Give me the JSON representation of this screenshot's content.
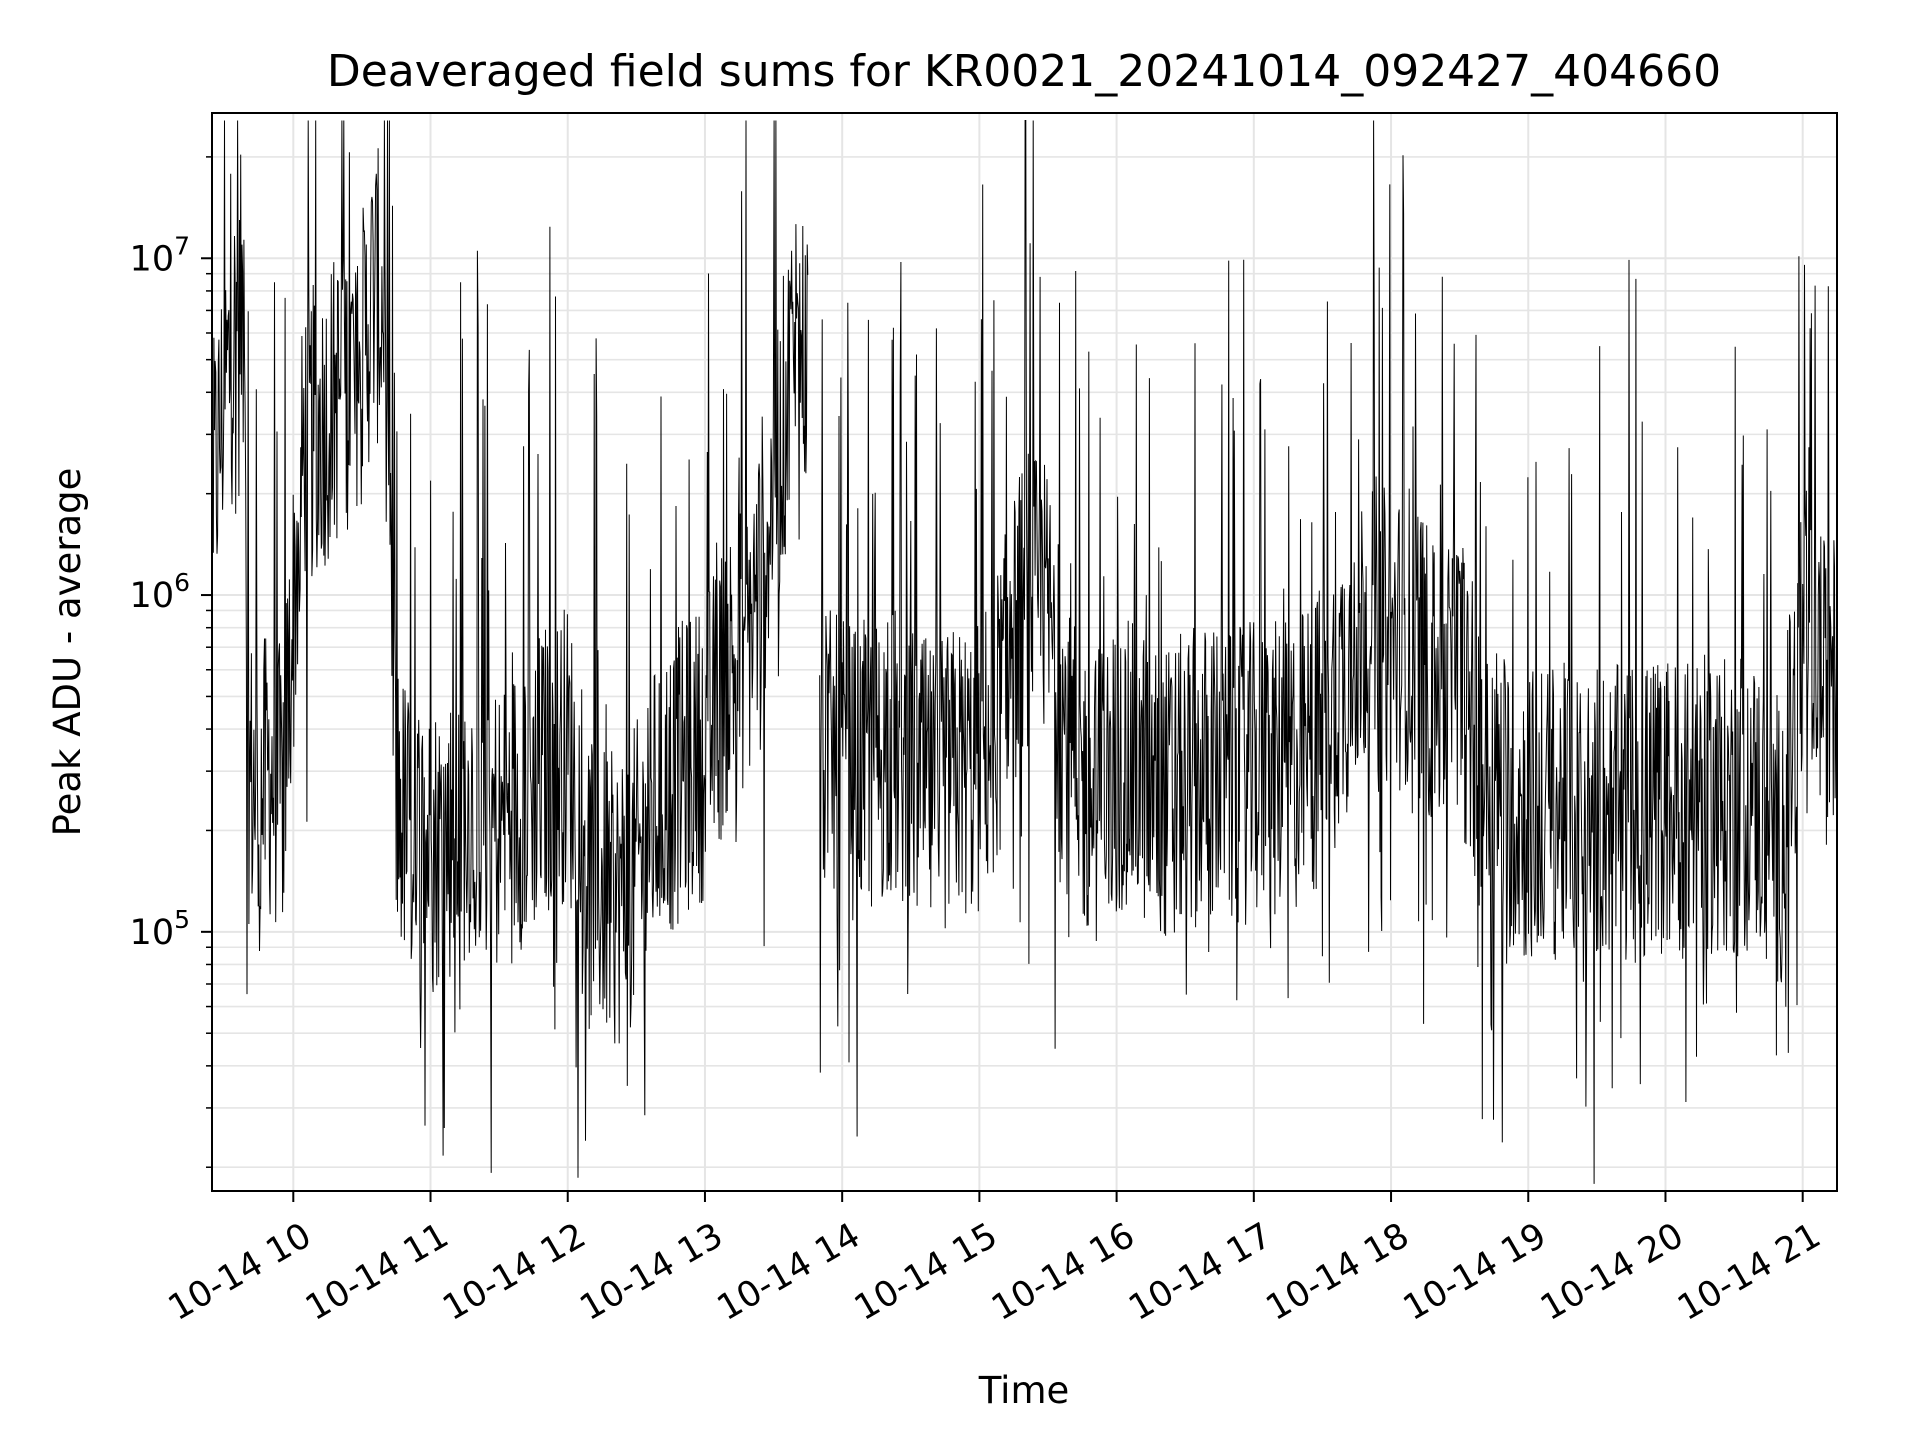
{
  "chart_data": {
    "type": "line",
    "title": "Deaveraged field sums for KR0021_20241014_092427_404660",
    "xlabel": "Time",
    "ylabel": "Peak ADU - average",
    "yscale": "log",
    "ylim": [
      17000,
      27000000
    ],
    "xlim": [
      "2024-10-14 09:24:27",
      "2024-10-14 21:15:00"
    ],
    "x_ticks": [
      "2024-10-14 10:00",
      "2024-10-14 11:00",
      "2024-10-14 12:00",
      "2024-10-14 13:00",
      "2024-10-14 14:00",
      "2024-10-14 15:00",
      "2024-10-14 16:00",
      "2024-10-14 17:00",
      "2024-10-14 18:00",
      "2024-10-14 19:00",
      "2024-10-14 20:00",
      "2024-10-14 21:00"
    ],
    "x_tick_labels": [
      "10-14 10",
      "10-14 11",
      "10-14 12",
      "10-14 13",
      "10-14 14",
      "10-14 15",
      "10-14 16",
      "10-14 17",
      "10-14 18",
      "10-14 19",
      "10-14 20",
      "10-14 21"
    ],
    "y_tick_labels": [
      {
        "base": "10",
        "exp": "5",
        "value": 100000
      },
      {
        "base": "10",
        "exp": "6",
        "value": 1000000
      },
      {
        "base": "10",
        "exp": "7",
        "value": 10000000
      }
    ],
    "grid": true,
    "line_color": "#000000",
    "grid_color": "#e5e5e5",
    "series": [
      {
        "x": [
          "2024-10-14 09:25",
          "2024-10-14 09:30",
          "2024-10-14 09:35",
          "2024-10-14 09:38",
          "2024-10-14 09:40",
          "2024-10-14 09:45",
          "2024-10-14 09:50",
          "2024-10-14 09:55",
          "2024-10-14 10:05",
          "2024-10-14 10:10",
          "2024-10-14 10:20",
          "2024-10-14 10:30",
          "2024-10-14 10:35",
          "2024-10-14 10:40",
          "2024-10-14 10:45",
          "2024-10-14 10:50",
          "2024-10-14 11:00",
          "2024-10-14 11:10",
          "2024-10-14 11:20",
          "2024-10-14 11:30",
          "2024-10-14 11:40",
          "2024-10-14 11:50",
          "2024-10-14 12:00",
          "2024-10-14 12:10",
          "2024-10-14 12:20",
          "2024-10-14 12:30",
          "2024-10-14 12:40",
          "2024-10-14 12:50",
          "2024-10-14 13:00",
          "2024-10-14 13:10",
          "2024-10-14 13:20",
          "2024-10-14 13:30",
          "2024-10-14 13:40",
          "2024-10-14 13:45",
          "2024-10-14 13:50",
          "2024-10-14 14:00",
          "2024-10-14 14:10",
          "2024-10-14 14:20",
          "2024-10-14 14:30",
          "2024-10-14 14:40",
          "2024-10-14 14:50",
          "2024-10-14 15:00",
          "2024-10-14 15:10",
          "2024-10-14 15:20",
          "2024-10-14 15:30",
          "2024-10-14 15:40",
          "2024-10-14 15:50",
          "2024-10-14 16:00",
          "2024-10-14 16:10",
          "2024-10-14 16:20",
          "2024-10-14 16:30",
          "2024-10-14 16:40",
          "2024-10-14 16:50",
          "2024-10-14 17:00",
          "2024-10-14 17:10",
          "2024-10-14 17:20",
          "2024-10-14 17:30",
          "2024-10-14 17:40",
          "2024-10-14 17:50",
          "2024-10-14 18:00",
          "2024-10-14 18:10",
          "2024-10-14 18:20",
          "2024-10-14 18:30",
          "2024-10-14 18:40",
          "2024-10-14 18:50",
          "2024-10-14 19:00",
          "2024-10-14 19:10",
          "2024-10-14 19:20",
          "2024-10-14 19:30",
          "2024-10-14 19:40",
          "2024-10-14 19:50",
          "2024-10-14 20:00",
          "2024-10-14 20:10",
          "2024-10-14 20:20",
          "2024-10-14 20:30",
          "2024-10-14 20:40",
          "2024-10-14 20:50",
          "2024-10-14 21:00",
          "2024-10-14 21:05",
          "2024-10-14 21:10",
          "2024-10-14 21:15"
        ],
        "y": [
          2000000,
          4000000,
          6000000,
          8000000,
          300000,
          250000,
          300000,
          250000,
          3000000,
          3000000,
          4000000,
          5000000,
          8000000,
          7000000,
          250000,
          200000,
          180000,
          200000,
          250000,
          200000,
          250000,
          300000,
          350000,
          150000,
          120000,
          150000,
          250000,
          300000,
          350000,
          600000,
          800000,
          2000000,
          6000000,
          5000000,
          350000,
          300000,
          300000,
          350000,
          300000,
          250000,
          300000,
          300000,
          500000,
          1000000,
          900000,
          300000,
          250000,
          300000,
          300000,
          250000,
          280000,
          300000,
          280000,
          300000,
          300000,
          320000,
          400000,
          600000,
          900000,
          700000,
          800000,
          500000,
          600000,
          300000,
          250000,
          220000,
          230000,
          220000,
          230000,
          220000,
          230000,
          240000,
          230000,
          240000,
          230000,
          240000,
          180000,
          700000,
          800000,
          500000,
          600000
        ]
      }
    ]
  }
}
